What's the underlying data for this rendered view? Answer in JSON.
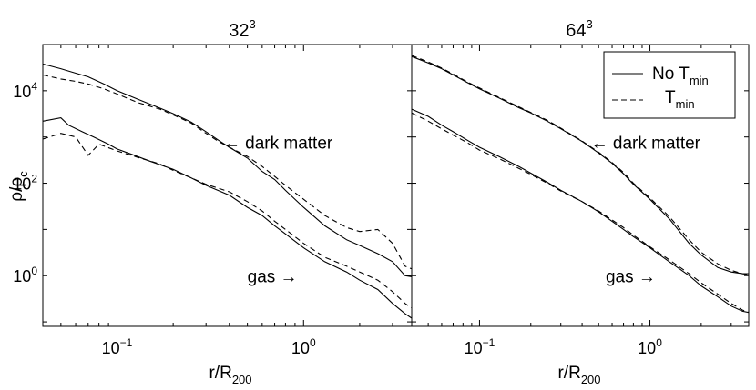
{
  "chart_data": [
    {
      "type": "line",
      "title": "32",
      "title_sup": "3",
      "xlabel": "r/R",
      "xlabel_sub": "200",
      "ylabel": "ρ/ρ",
      "ylabel_sub": "c",
      "xscale": "log",
      "yscale": "log",
      "xlim": [
        0.04,
        3.8
      ],
      "ylim": [
        0.08,
        100000
      ],
      "x_ticks": [
        {
          "value": 0.1,
          "base": "10",
          "exp": "−1"
        },
        {
          "value": 1,
          "base": "10",
          "exp": "0"
        }
      ],
      "y_ticks": [
        {
          "value": 1,
          "base": "10",
          "exp": "0"
        },
        {
          "value": 100,
          "base": "10",
          "exp": "2"
        },
        {
          "value": 10000,
          "base": "10",
          "exp": "4"
        }
      ],
      "annotations": [
        {
          "text": "← dark matter",
          "x": 0.37,
          "y": 560
        },
        {
          "text": "gas →",
          "x": 0.5,
          "y": 0.72
        }
      ],
      "series": [
        {
          "component": "dark matter",
          "style": "solid",
          "points": [
            [
              0.04,
              38000
            ],
            [
              0.05,
              30000
            ],
            [
              0.06,
              24000
            ],
            [
              0.07,
              20000
            ],
            [
              0.085,
              14000
            ],
            [
              0.1,
              10000
            ],
            [
              0.13,
              6500
            ],
            [
              0.17,
              4200
            ],
            [
              0.2,
              3200
            ],
            [
              0.25,
              2100
            ],
            [
              0.3,
              1300
            ],
            [
              0.35,
              850
            ],
            [
              0.4,
              600
            ],
            [
              0.5,
              350
            ],
            [
              0.6,
              180
            ],
            [
              0.7,
              120
            ],
            [
              0.8,
              70
            ],
            [
              1.0,
              30
            ],
            [
              1.3,
              12
            ],
            [
              1.7,
              6
            ],
            [
              2.0,
              4.5
            ],
            [
              2.5,
              3
            ],
            [
              3.0,
              2
            ],
            [
              3.5,
              1.0
            ],
            [
              3.8,
              0.95
            ]
          ]
        },
        {
          "component": "dark matter",
          "style": "dashed",
          "points": [
            [
              0.04,
              22000
            ],
            [
              0.05,
              18000
            ],
            [
              0.06,
              16000
            ],
            [
              0.07,
              14000
            ],
            [
              0.085,
              11000
            ],
            [
              0.1,
              8500
            ],
            [
              0.13,
              5500
            ],
            [
              0.17,
              4000
            ],
            [
              0.2,
              3000
            ],
            [
              0.25,
              2000
            ],
            [
              0.3,
              1200
            ],
            [
              0.35,
              800
            ],
            [
              0.4,
              600
            ],
            [
              0.5,
              380
            ],
            [
              0.6,
              230
            ],
            [
              0.7,
              140
            ],
            [
              0.8,
              90
            ],
            [
              1.0,
              45
            ],
            [
              1.3,
              20
            ],
            [
              1.7,
              11
            ],
            [
              2.0,
              9
            ],
            [
              2.5,
              10
            ],
            [
              3.0,
              5
            ],
            [
              3.5,
              1.6
            ],
            [
              3.8,
              1.4
            ]
          ]
        },
        {
          "component": "gas",
          "style": "solid",
          "points": [
            [
              0.04,
              2200
            ],
            [
              0.05,
              2600
            ],
            [
              0.055,
              1800
            ],
            [
              0.065,
              1300
            ],
            [
              0.075,
              1000
            ],
            [
              0.09,
              700
            ],
            [
              0.1,
              550
            ],
            [
              0.12,
              420
            ],
            [
              0.15,
              300
            ],
            [
              0.2,
              200
            ],
            [
              0.25,
              130
            ],
            [
              0.3,
              90
            ],
            [
              0.4,
              55
            ],
            [
              0.5,
              30
            ],
            [
              0.6,
              20
            ],
            [
              0.7,
              12
            ],
            [
              0.8,
              8
            ],
            [
              1.0,
              4
            ],
            [
              1.3,
              2
            ],
            [
              1.7,
              1.2
            ],
            [
              2.0,
              0.8
            ],
            [
              2.5,
              0.5
            ],
            [
              3.0,
              0.25
            ],
            [
              3.5,
              0.15
            ],
            [
              3.8,
              0.12
            ]
          ]
        },
        {
          "component": "gas",
          "style": "dashed",
          "points": [
            [
              0.04,
              900
            ],
            [
              0.05,
              1200
            ],
            [
              0.06,
              1000
            ],
            [
              0.07,
              400
            ],
            [
              0.08,
              700
            ],
            [
              0.1,
              500
            ],
            [
              0.13,
              360
            ],
            [
              0.17,
              260
            ],
            [
              0.2,
              190
            ],
            [
              0.25,
              130
            ],
            [
              0.3,
              95
            ],
            [
              0.4,
              65
            ],
            [
              0.5,
              40
            ],
            [
              0.6,
              25
            ],
            [
              0.7,
              15
            ],
            [
              0.8,
              10
            ],
            [
              1.0,
              5
            ],
            [
              1.3,
              2.5
            ],
            [
              1.7,
              1.6
            ],
            [
              2.0,
              1.2
            ],
            [
              2.5,
              0.8
            ],
            [
              3.0,
              0.45
            ],
            [
              3.5,
              0.25
            ],
            [
              3.8,
              0.2
            ]
          ]
        }
      ]
    },
    {
      "type": "line",
      "title": "64",
      "title_sup": "3",
      "xlabel": "r/R",
      "xlabel_sub": "200",
      "ylabel": "",
      "xscale": "log",
      "yscale": "log",
      "xlim": [
        0.04,
        3.8
      ],
      "ylim": [
        0.08,
        100000
      ],
      "x_ticks": [
        {
          "value": 0.1,
          "base": "10",
          "exp": "−1"
        },
        {
          "value": 1,
          "base": "10",
          "exp": "0"
        }
      ],
      "y_ticks": [],
      "annotations": [
        {
          "text": "← dark matter",
          "x": 0.45,
          "y": 560
        },
        {
          "text": "gas →",
          "x": 0.55,
          "y": 0.72
        }
      ],
      "legend": {
        "placement": "top-right",
        "entries": [
          {
            "style": "solid",
            "base": "No T",
            "sub": "min"
          },
          {
            "style": "dashed",
            "base": "T",
            "sub": "min"
          }
        ]
      },
      "series": [
        {
          "component": "dark matter",
          "style": "solid",
          "points": [
            [
              0.04,
              55000
            ],
            [
              0.05,
              40000
            ],
            [
              0.06,
              30000
            ],
            [
              0.07,
              22000
            ],
            [
              0.085,
              15000
            ],
            [
              0.1,
              11000
            ],
            [
              0.13,
              7000
            ],
            [
              0.17,
              4300
            ],
            [
              0.2,
              3300
            ],
            [
              0.25,
              2200
            ],
            [
              0.3,
              1500
            ],
            [
              0.4,
              800
            ],
            [
              0.5,
              450
            ],
            [
              0.6,
              270
            ],
            [
              0.7,
              160
            ],
            [
              0.8,
              95
            ],
            [
              1.0,
              45
            ],
            [
              1.3,
              17
            ],
            [
              1.7,
              5
            ],
            [
              2.0,
              2.8
            ],
            [
              2.5,
              1.5
            ],
            [
              3.0,
              1.2
            ],
            [
              3.5,
              1.1
            ],
            [
              3.8,
              1.1
            ]
          ]
        },
        {
          "component": "dark matter",
          "style": "dashed",
          "points": [
            [
              0.04,
              58000
            ],
            [
              0.05,
              42000
            ],
            [
              0.06,
              31000
            ],
            [
              0.07,
              23000
            ],
            [
              0.085,
              15500
            ],
            [
              0.1,
              11500
            ],
            [
              0.13,
              7200
            ],
            [
              0.17,
              4500
            ],
            [
              0.2,
              3400
            ],
            [
              0.25,
              2300
            ],
            [
              0.3,
              1550
            ],
            [
              0.4,
              820
            ],
            [
              0.5,
              470
            ],
            [
              0.6,
              280
            ],
            [
              0.7,
              170
            ],
            [
              0.8,
              100
            ],
            [
              1.0,
              48
            ],
            [
              1.3,
              19
            ],
            [
              1.7,
              6
            ],
            [
              2.0,
              3.2
            ],
            [
              2.5,
              1.8
            ],
            [
              3.0,
              1.3
            ],
            [
              3.5,
              1.1
            ],
            [
              3.8,
              1.05
            ]
          ]
        },
        {
          "component": "gas",
          "style": "solid",
          "points": [
            [
              0.04,
              4000
            ],
            [
              0.05,
              2800
            ],
            [
              0.06,
              1800
            ],
            [
              0.07,
              1300
            ],
            [
              0.085,
              850
            ],
            [
              0.1,
              600
            ],
            [
              0.13,
              380
            ],
            [
              0.17,
              230
            ],
            [
              0.2,
              165
            ],
            [
              0.25,
              105
            ],
            [
              0.3,
              70
            ],
            [
              0.4,
              40
            ],
            [
              0.5,
              24
            ],
            [
              0.6,
              15
            ],
            [
              0.7,
              10
            ],
            [
              0.8,
              7
            ],
            [
              1.0,
              4
            ],
            [
              1.3,
              2
            ],
            [
              1.7,
              1.0
            ],
            [
              2.0,
              0.6
            ],
            [
              2.5,
              0.35
            ],
            [
              3.0,
              0.22
            ],
            [
              3.5,
              0.17
            ],
            [
              3.8,
              0.16
            ]
          ]
        },
        {
          "component": "gas",
          "style": "dashed",
          "points": [
            [
              0.04,
              3300
            ],
            [
              0.05,
              2200
            ],
            [
              0.06,
              1500
            ],
            [
              0.07,
              1100
            ],
            [
              0.085,
              750
            ],
            [
              0.1,
              520
            ],
            [
              0.13,
              340
            ],
            [
              0.17,
              210
            ],
            [
              0.2,
              155
            ],
            [
              0.25,
              100
            ],
            [
              0.3,
              68
            ],
            [
              0.4,
              40
            ],
            [
              0.5,
              25
            ],
            [
              0.6,
              16
            ],
            [
              0.7,
              11
            ],
            [
              0.8,
              7.5
            ],
            [
              1.0,
              4.2
            ],
            [
              1.3,
              2.2
            ],
            [
              1.7,
              1.1
            ],
            [
              2.0,
              0.7
            ],
            [
              2.5,
              0.4
            ],
            [
              3.0,
              0.25
            ],
            [
              3.5,
              0.18
            ],
            [
              3.8,
              0.16
            ]
          ]
        }
      ]
    }
  ]
}
